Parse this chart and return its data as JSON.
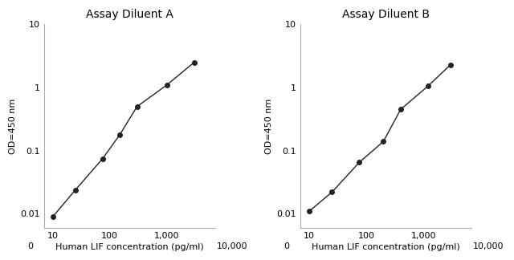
{
  "panel_A": {
    "title": "Assay Diluent A",
    "x": [
      9.375,
      18.75,
      37.5,
      75,
      150,
      300,
      600,
      3000
    ],
    "y": [
      0.009,
      0.024,
      0.073,
      0.18,
      0.5,
      1.1,
      2.5,
      2.5
    ],
    "xlabel": "Human LIF concentration (pg/ml)",
    "ylabel": "OD=450 nm"
  },
  "panel_B": {
    "title": "Assay Diluent B",
    "x": [
      9.375,
      18.75,
      37.5,
      75,
      150,
      600,
      1500,
      3000
    ],
    "y": [
      0.011,
      0.022,
      0.065,
      0.14,
      0.45,
      1.05,
      2.3,
      2.3
    ],
    "xlabel": "Human LIF concentration (pg/ml)",
    "ylabel": "OD=450 nm"
  },
  "xlim": [
    7,
    7000
  ],
  "ylim": [
    0.006,
    10
  ],
  "xticks": [
    10,
    100,
    1000
  ],
  "xtick_labels": [
    "10",
    "100",
    "1,000"
  ],
  "yticks": [
    0.01,
    0.1,
    1,
    10
  ],
  "ytick_labels": [
    "0.01",
    "0.1",
    "1",
    "10"
  ],
  "line_color": "#222222",
  "marker": "o",
  "markersize": 4,
  "linewidth": 1.0,
  "bg_color": "#ffffff",
  "title_fontsize": 10,
  "label_fontsize": 8,
  "tick_fontsize": 8
}
